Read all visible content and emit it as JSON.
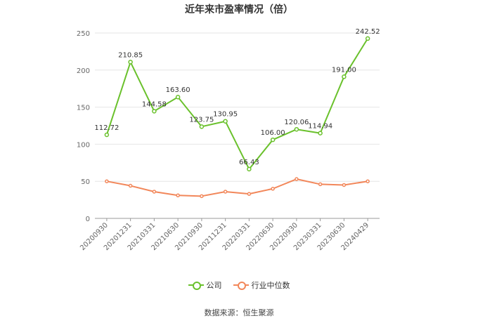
{
  "chart_data": {
    "type": "line",
    "title": "近年来市盈率情况（倍）",
    "categories": [
      "20200930",
      "20201231",
      "20210331",
      "20210630",
      "20210930",
      "20211231",
      "20220331",
      "20220630",
      "20220930",
      "20230331",
      "20230630",
      "20240429"
    ],
    "series": [
      {
        "name": "公司",
        "color": "#6ac12c",
        "values": [
          112.72,
          210.85,
          144.58,
          163.6,
          123.75,
          130.95,
          66.43,
          106.0,
          120.06,
          114.94,
          191.0,
          242.52
        ],
        "labels": [
          "112.72",
          "210.85",
          "144.58",
          "163.60",
          "123.75",
          "130.95",
          "66.43",
          "106.00",
          "120.06",
          "114.94",
          "191.00",
          "242.52"
        ]
      },
      {
        "name": "行业中位数",
        "color": "#f2875a",
        "values": [
          50,
          44,
          36,
          31,
          30,
          36,
          33,
          40,
          53,
          46,
          45,
          50
        ]
      }
    ],
    "ylim": [
      0,
      250
    ],
    "yticks": [
      "0",
      "50",
      "100",
      "150",
      "200",
      "250"
    ],
    "grid": true,
    "legend": "bottom",
    "xlabel": "",
    "ylabel": ""
  },
  "source": "数据来源：恒生聚源"
}
